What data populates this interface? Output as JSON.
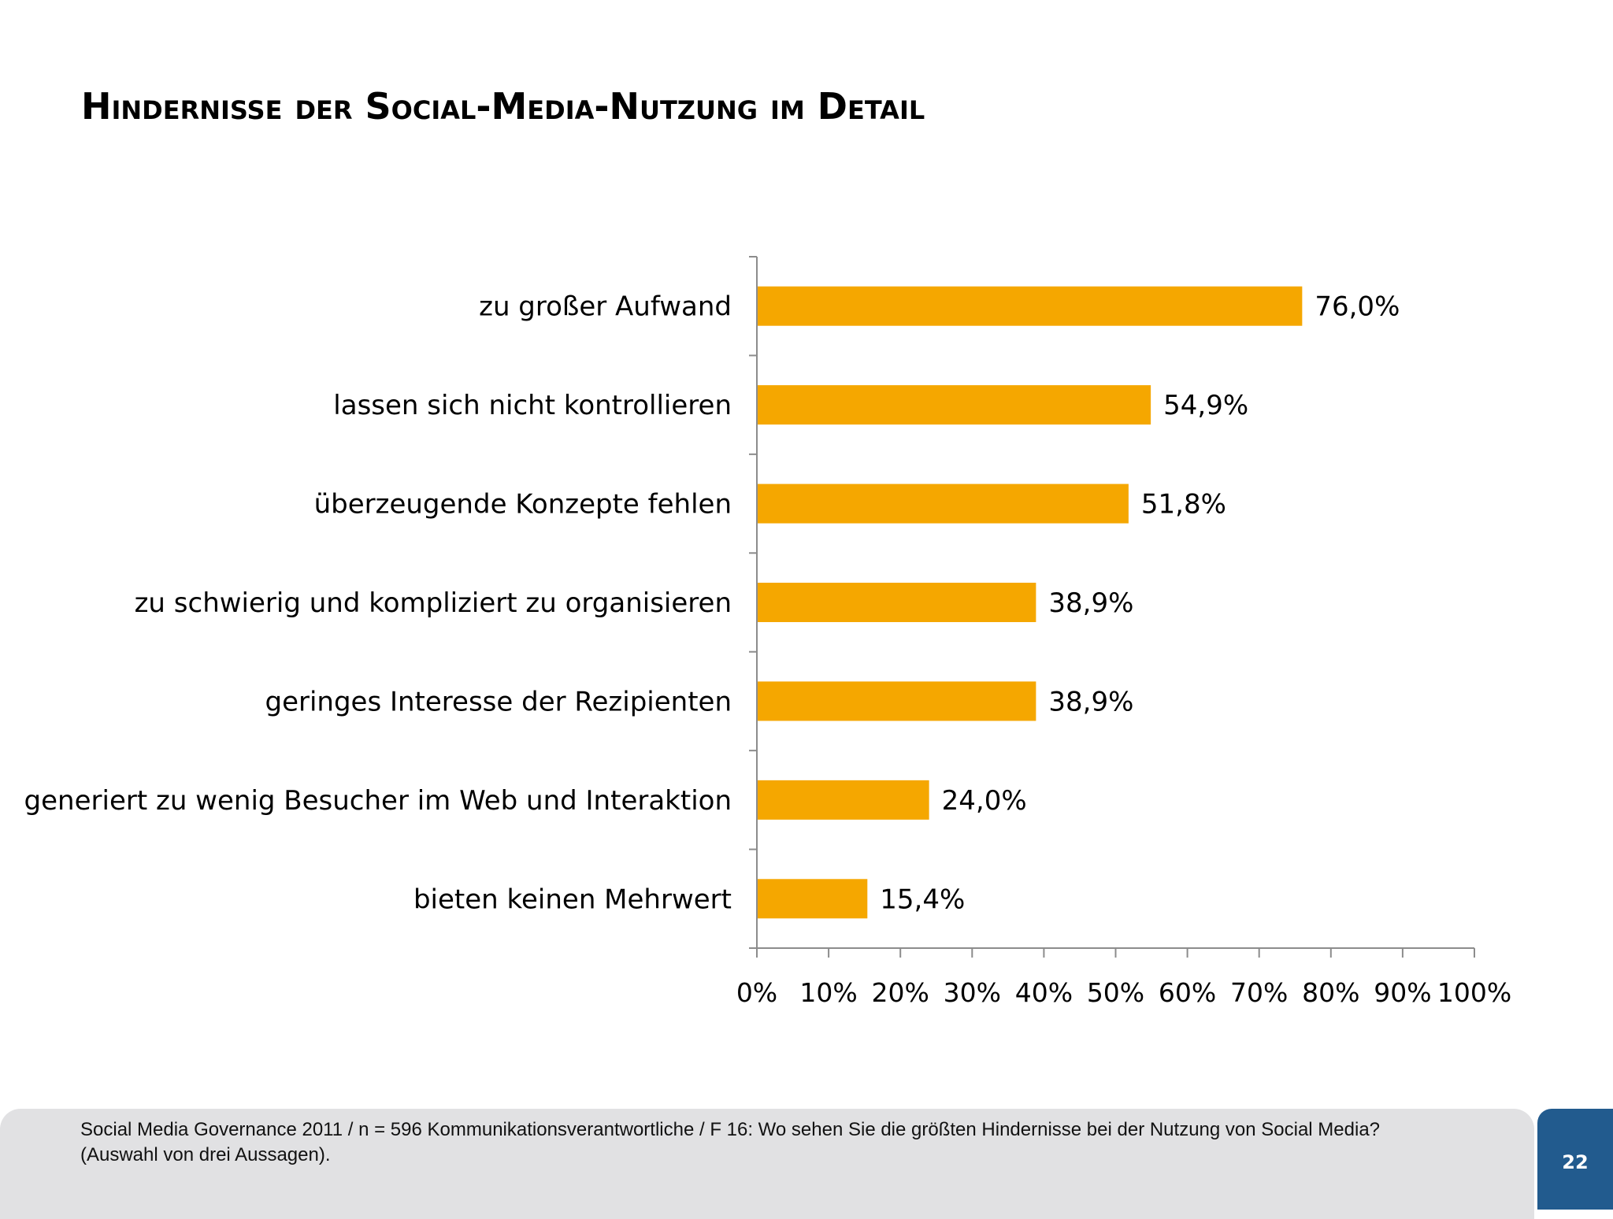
{
  "page": {
    "title": "Hindernisse der Social-Media-Nutzung im Detail",
    "footer_note": "Social Media Governance 2011 / n = 596 Kommunikationsverantwortliche / F 16: Wo sehen Sie die größten Hindernisse bei der Nutzung von Social Media? (Auswahl von drei Aussagen).",
    "page_number": "22"
  },
  "chart_data": {
    "type": "bar",
    "orientation": "horizontal",
    "categories": [
      "zu großer Aufwand",
      "lassen sich nicht kontrollieren",
      "überzeugende Konzepte fehlen",
      "zu schwierig und kompliziert zu organisieren",
      "geringes Interesse der Rezipienten",
      "generiert zu wenig Besucher im Web und Interaktion",
      "bieten keinen Mehrwert"
    ],
    "values": [
      76.0,
      54.9,
      51.8,
      38.9,
      38.9,
      24.0,
      15.4
    ],
    "value_labels": [
      "76,0%",
      "54,9%",
      "51,8%",
      "38,9%",
      "38,9%",
      "24,0%",
      "15,4%"
    ],
    "xlim": [
      0,
      100
    ],
    "xticks": [
      "0%",
      "10%",
      "20%",
      "30%",
      "40%",
      "50%",
      "60%",
      "70%",
      "80%",
      "90%",
      "100%"
    ],
    "bar_color": "#f5a700",
    "axis_color": "#8c8c8c",
    "grid": false,
    "legend": "none"
  }
}
